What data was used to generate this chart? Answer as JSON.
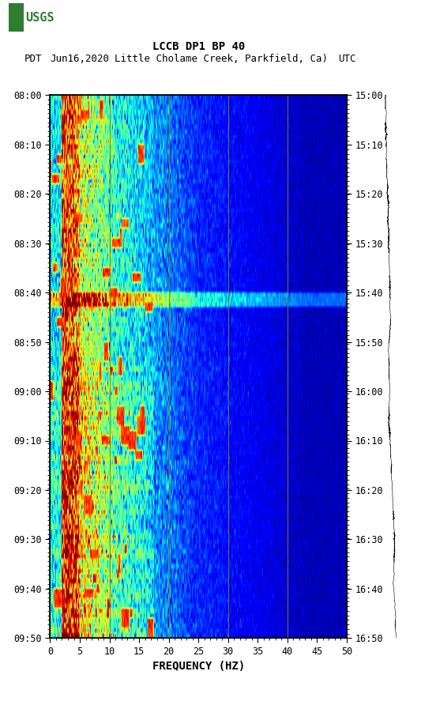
{
  "title_line1": "LCCB DP1 BP 40",
  "title_line2": "PDT   Jun16,2020Little Cholame Creek, Parkfield, Ca)     UTC",
  "title_line2_pdt": "PDT",
  "title_line2_date": "Jun16,2020",
  "title_line2_loc": "Little Cholame Creek, Parkfield, Ca)",
  "title_line2_utc": "UTC",
  "left_yticks": [
    "08:00",
    "08:10",
    "08:20",
    "08:30",
    "08:40",
    "08:50",
    "09:00",
    "09:10",
    "09:20",
    "09:30",
    "09:40",
    "09:50"
  ],
  "right_yticks": [
    "15:00",
    "15:10",
    "15:20",
    "15:30",
    "15:40",
    "15:50",
    "16:00",
    "16:10",
    "16:20",
    "16:30",
    "16:40",
    "16:50"
  ],
  "xticks": [
    0,
    5,
    10,
    15,
    20,
    25,
    30,
    35,
    40,
    45,
    50
  ],
  "xlabel": "FREQUENCY (HZ)",
  "xmin": 0,
  "xmax": 50,
  "freq_lines": [
    10,
    20,
    30,
    40
  ],
  "spectrogram_cmap": "jet",
  "vertical_line_color": "#8B8000",
  "n_time_bins": 110,
  "n_freq_bins": 500,
  "figwidth": 5.52,
  "figheight": 8.92,
  "dpi": 100
}
